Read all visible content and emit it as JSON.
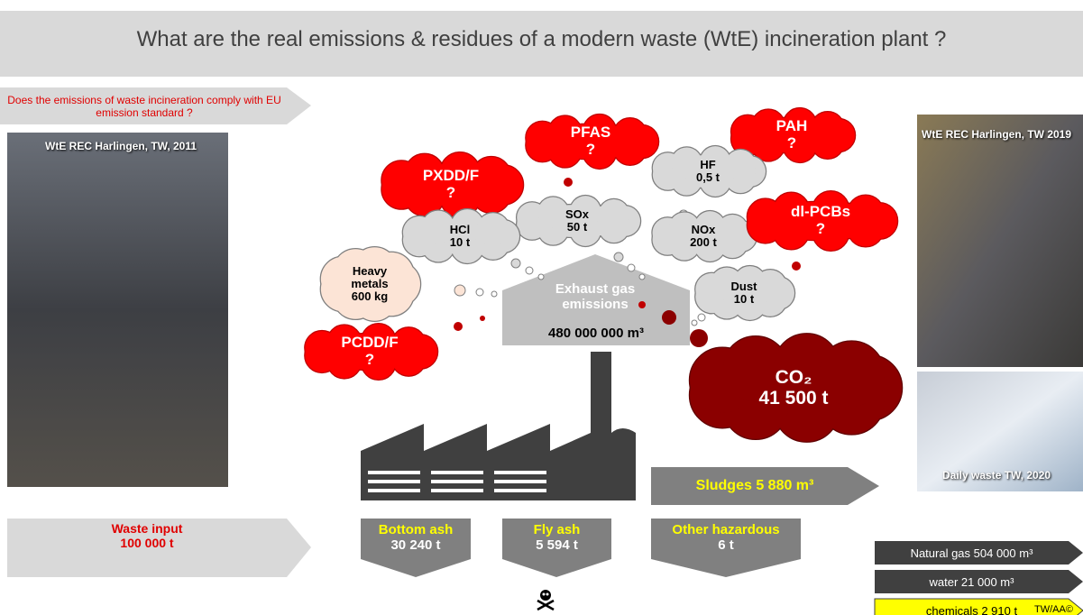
{
  "title": "What are the real emissions & residues of a modern waste (WtE) incineration plant ?",
  "question": "Does the emissions of waste incineration comply with EU emission standard ?",
  "photos": [
    "WtE REC Harlingen, TW, 2011",
    "WtE REC Harlingen, TW 2019",
    "Daily waste TW, 2020"
  ],
  "clouds": [
    {
      "label": "PFAS",
      "value": "?"
    },
    {
      "label": "PAH",
      "value": "?"
    },
    {
      "label": "PXDD/F",
      "value": "?"
    },
    {
      "label": "HF",
      "value": "0,5 t"
    },
    {
      "label": "SOx",
      "value": "50 t"
    },
    {
      "label": "HCl",
      "value": "10 t"
    },
    {
      "label": "NOx",
      "value": "200 t"
    },
    {
      "label": "dl-PCBs",
      "value": "?"
    },
    {
      "label": "Heavy metals",
      "value": "600 kg"
    },
    {
      "label": "Dust",
      "value": "10 t"
    },
    {
      "label": "PCDD/F",
      "value": "?"
    },
    {
      "label": "CO₂",
      "value": "41 500 t"
    }
  ],
  "exhaust": {
    "label": "Exhaust gas emissions",
    "value": "480 000 000 m³"
  },
  "sludges": "Sludges 5 880 m³",
  "input": {
    "label": "Waste input",
    "value": "100 000 t"
  },
  "outputs": [
    {
      "label": "Bottom ash",
      "value": "30 240 t"
    },
    {
      "label": "Fly ash",
      "value": "5 594 t"
    },
    {
      "label": "Other hazardous",
      "value": "6 t"
    }
  ],
  "resources": [
    "Natural gas 504 000 m³",
    "water 21 000 m³",
    "chemicals 2 910 t"
  ],
  "footer": "TW/AA©"
}
